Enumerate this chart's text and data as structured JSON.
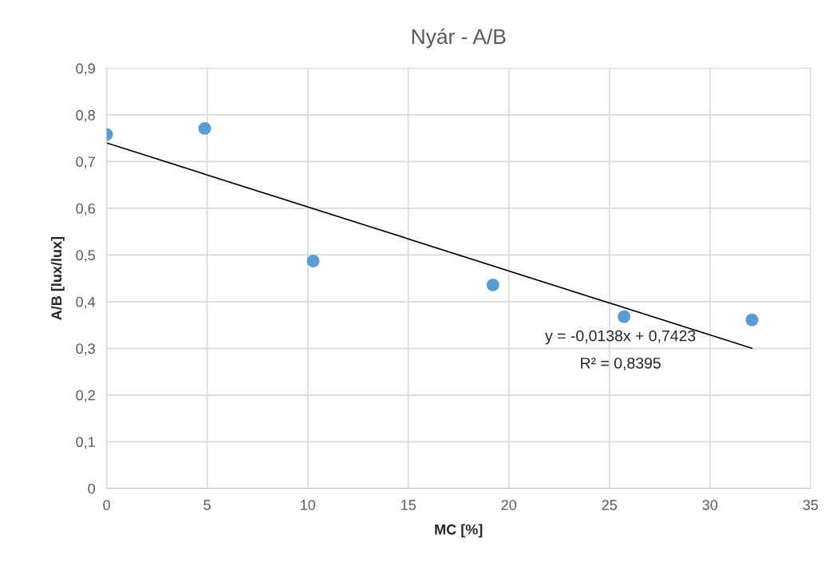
{
  "chart_data": {
    "type": "scatter",
    "title": "Nyár - A/B",
    "xlabel": "MC [%]",
    "ylabel": "A/B [lux/lux]",
    "series": [
      {
        "marker": "circle",
        "color": "#5b9bd5",
        "x": [
          0,
          4.88,
          10.27,
          19.21,
          25.73,
          32.09
        ],
        "values": [
          0.758,
          0.771,
          0.487,
          0.436,
          0.368,
          0.361
        ]
      },
      {
        "type": "line",
        "marker": "none",
        "color": "#000000",
        "x": [
          0,
          32.09
        ],
        "values": [
          0.74,
          0.3
        ]
      }
    ],
    "annotations": [
      "y = -0,0138x + 0,7423",
      "R² = 0,8395"
    ],
    "xlim": [
      0,
      35
    ],
    "xticks": [
      0,
      5,
      10,
      15,
      20,
      25,
      30,
      35
    ],
    "ylim": [
      0,
      0.9
    ],
    "yticks": [
      0,
      {
        "value": 0.1,
        "label": "0,1"
      },
      {
        "value": 0.2,
        "label": "0,2"
      },
      {
        "value": 0.3,
        "label": "0,3"
      },
      {
        "value": 0.4,
        "label": "0,4"
      },
      {
        "value": 0.5,
        "label": "0,5"
      },
      {
        "value": 0.6,
        "label": "0,6"
      },
      {
        "value": 0.7,
        "label": "0,7"
      },
      {
        "value": 0.8,
        "label": "0,8"
      },
      {
        "value": 0.9,
        "label": "0,9"
      }
    ],
    "grid": true
  }
}
